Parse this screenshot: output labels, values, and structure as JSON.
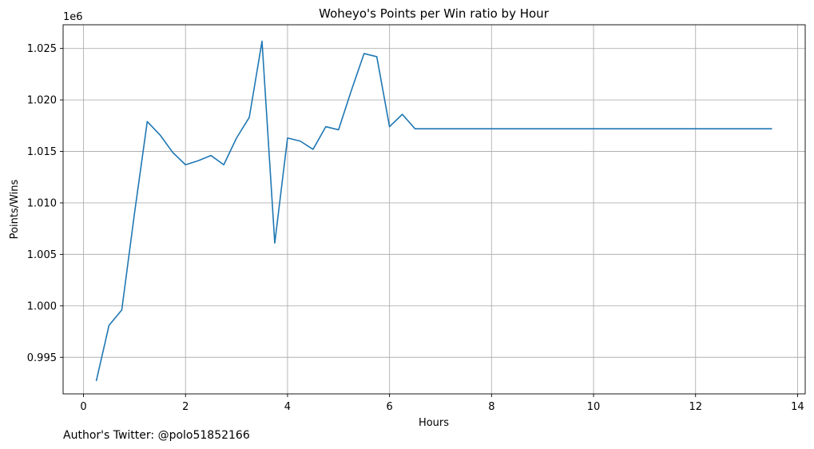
{
  "chart_data": {
    "type": "line",
    "title": "Woheyo's Points per Win ratio by Hour",
    "xlabel": "Hours",
    "ylabel": "Points/Wins",
    "y_offset_label": "1e6",
    "xlim": [
      -0.4,
      14.15
    ],
    "ylim": [
      0.99145,
      1.0273
    ],
    "x_ticks": [
      0,
      2,
      4,
      6,
      8,
      10,
      12,
      14
    ],
    "x_tick_labels": [
      "0",
      "2",
      "4",
      "6",
      "8",
      "10",
      "12",
      "14"
    ],
    "y_ticks": [
      0.995,
      1.0,
      1.005,
      1.01,
      1.015,
      1.02,
      1.025
    ],
    "y_tick_labels": [
      "0.995",
      "1.000",
      "1.005",
      "1.010",
      "1.015",
      "1.020",
      "1.025"
    ],
    "grid": true,
    "line_color": "#1f77b4",
    "series": [
      {
        "x": [
          0.25,
          0.5,
          0.75,
          1.0,
          1.25,
          1.5,
          1.75,
          2.0,
          2.25,
          2.5,
          2.75,
          3.0,
          3.25,
          3.5,
          3.75,
          4.0,
          4.25,
          4.5,
          4.75,
          5.0,
          5.25,
          5.5,
          5.75,
          6.0,
          6.25,
          6.5,
          6.75,
          7.0,
          7.25,
          7.5,
          7.75,
          8.0,
          8.25,
          8.5,
          8.75,
          9.0,
          9.25,
          9.5,
          9.75,
          10.0,
          10.25,
          10.5,
          10.75,
          11.0,
          11.25,
          11.5,
          11.75,
          12.0,
          12.25,
          12.5,
          12.75,
          13.0,
          13.25,
          13.5
        ],
        "values": [
          0.9927,
          0.9981,
          0.9996,
          1.009,
          1.0179,
          1.0166,
          1.0149,
          1.0137,
          1.0141,
          1.0146,
          1.0137,
          1.0163,
          1.0183,
          1.0257,
          1.0061,
          1.0163,
          1.016,
          1.0152,
          1.0174,
          1.0171,
          1.0209,
          1.0245,
          1.0242,
          1.0174,
          1.0186,
          1.0172,
          1.0172,
          1.0172,
          1.0172,
          1.0172,
          1.0172,
          1.0172,
          1.0172,
          1.0172,
          1.0172,
          1.0172,
          1.0172,
          1.0172,
          1.0172,
          1.0172,
          1.0172,
          1.0172,
          1.0172,
          1.0172,
          1.0172,
          1.0172,
          1.0172,
          1.0172,
          1.0172,
          1.0172,
          1.0172,
          1.0172,
          1.0172,
          1.0172
        ]
      }
    ]
  },
  "credit": "Author's Twitter: @polo51852166"
}
